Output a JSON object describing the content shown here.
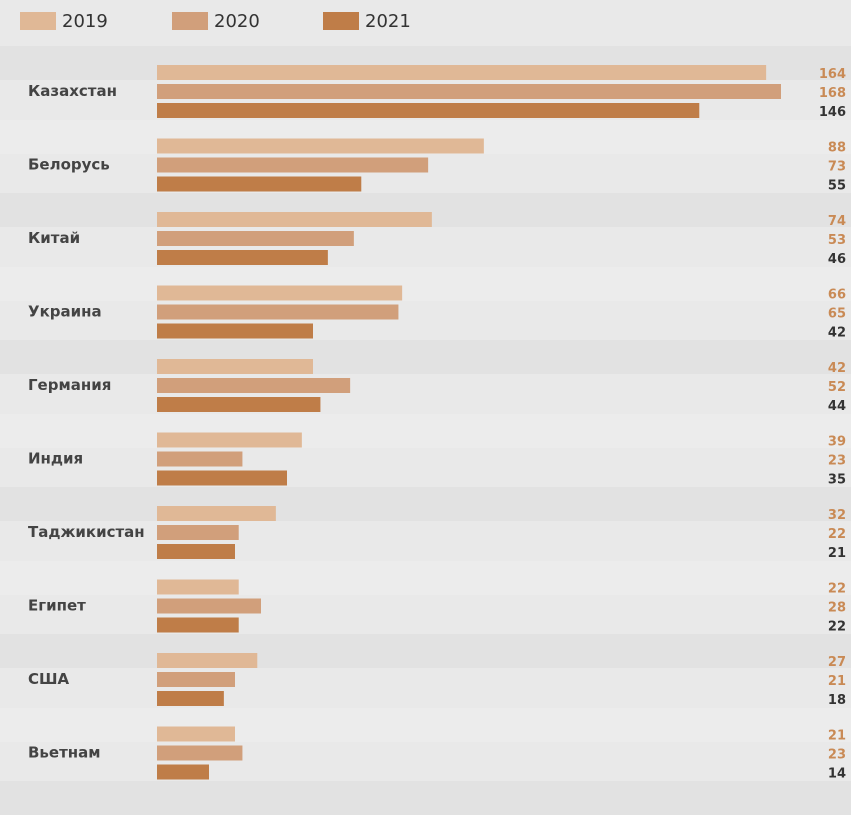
{
  "chart_data": {
    "type": "bar",
    "orientation": "horizontal",
    "categories": [
      "Казахстан",
      "Белорусь",
      "Китай",
      "Украина",
      "Германия",
      "Индия",
      "Таджикистан",
      "Египет",
      "США",
      "Вьетнам"
    ],
    "series": [
      {
        "name": "2019",
        "values": [
          164,
          88,
          74,
          66,
          42,
          39,
          32,
          22,
          27,
          21
        ],
        "color": "#e0b896"
      },
      {
        "name": "2020",
        "values": [
          168,
          73,
          53,
          65,
          52,
          23,
          22,
          28,
          21,
          23
        ],
        "color": "#d19f7b"
      },
      {
        "name": "2021",
        "values": [
          146,
          55,
          46,
          42,
          44,
          35,
          21,
          22,
          18,
          14
        ],
        "color": "#bf7d48"
      }
    ],
    "value_label_colors": [
      "#c98a55",
      "#c98a55",
      "#333333"
    ],
    "legend_position": "top",
    "xlim": [
      0,
      170
    ]
  }
}
